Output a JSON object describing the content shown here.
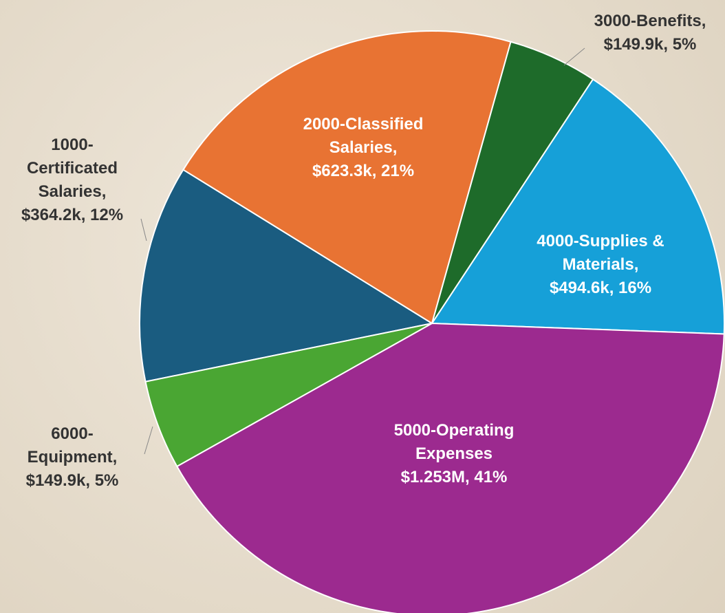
{
  "chart_data": {
    "type": "pie",
    "categories": [
      "1000-Certificated Salaries,",
      "2000-Classified Salaries,",
      "3000-Benefits,",
      "4000-Supplies & Materials,",
      "5000-Operating Expenses",
      "6000-Equipment,"
    ],
    "values": [
      364200,
      623300,
      149900,
      494600,
      1253000,
      149900
    ],
    "value_labels": [
      "$364.2k, 12%",
      "$623.3k, 21%",
      "$149.9k, 5%",
      "$494.6k, 16%",
      "$1.253M, 41%",
      "$149.9k, 5%"
    ],
    "colors": [
      "#1a5c80",
      "#e87333",
      "#1e6b2a",
      "#16a0d8",
      "#9c2a8f",
      "#4aa633"
    ]
  }
}
